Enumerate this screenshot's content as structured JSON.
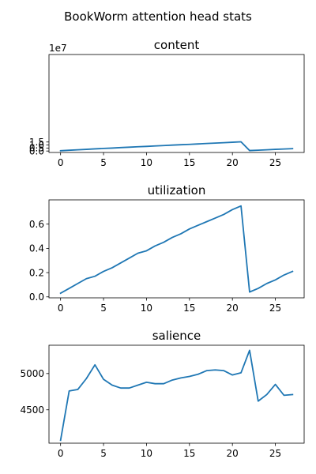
{
  "figure": {
    "title": "BookWorm attention head stats",
    "line_color": "#1f77b4"
  },
  "chart_data": [
    {
      "type": "line",
      "title": "content",
      "xlabel": "",
      "ylabel": "",
      "offset_text": "1e7",
      "xlim": [
        -1.35,
        28.35
      ],
      "ylim": [
        -0.24,
        16.05
      ],
      "x_ticks": [
        0,
        5,
        10,
        15,
        20,
        25
      ],
      "x_tick_labels": [
        "0",
        "5",
        "10",
        "15",
        "20",
        "25"
      ],
      "y_ticks": [
        0.0,
        0.5,
        1.0,
        1.5
      ],
      "y_tick_labels": [
        "0.0",
        "0.5",
        "1.0",
        "1.5"
      ],
      "y_scale": 10000000,
      "x": [
        0,
        1,
        2,
        3,
        4,
        5,
        6,
        7,
        8,
        9,
        10,
        11,
        12,
        13,
        14,
        15,
        16,
        17,
        18,
        19,
        20,
        21,
        22,
        23,
        24,
        25,
        26,
        27
      ],
      "series": [
        {
          "values": [
            0.05,
            0.13,
            0.2,
            0.28,
            0.36,
            0.43,
            0.49,
            0.57,
            0.64,
            0.71,
            0.77,
            0.84,
            0.91,
            0.98,
            1.05,
            1.11,
            1.18,
            1.25,
            1.32,
            1.39,
            1.46,
            1.53,
            0.08,
            0.14,
            0.2,
            0.28,
            0.34,
            0.4
          ]
        }
      ],
      "grid": false
    },
    {
      "type": "line",
      "title": "utilization",
      "xlabel": "",
      "ylabel": "",
      "xlim": [
        -1.35,
        28.35
      ],
      "ylim": [
        -0.008,
        0.8
      ],
      "x_ticks": [
        0,
        5,
        10,
        15,
        20,
        25
      ],
      "x_tick_labels": [
        "0",
        "5",
        "10",
        "15",
        "20",
        "25"
      ],
      "y_ticks": [
        0.0,
        0.2,
        0.4,
        0.6
      ],
      "y_tick_labels": [
        "0.0",
        "0.2",
        "0.4",
        "0.6"
      ],
      "y_scale": 1,
      "x": [
        0,
        1,
        2,
        3,
        4,
        5,
        6,
        7,
        8,
        9,
        10,
        11,
        12,
        13,
        14,
        15,
        16,
        17,
        18,
        19,
        20,
        21,
        22,
        23,
        24,
        25,
        26,
        27
      ],
      "series": [
        {
          "values": [
            0.03,
            0.07,
            0.11,
            0.15,
            0.17,
            0.21,
            0.24,
            0.28,
            0.32,
            0.36,
            0.38,
            0.42,
            0.45,
            0.49,
            0.52,
            0.56,
            0.59,
            0.62,
            0.65,
            0.68,
            0.72,
            0.75,
            0.04,
            0.07,
            0.11,
            0.14,
            0.18,
            0.21
          ]
        }
      ],
      "grid": false
    },
    {
      "type": "line",
      "title": "salience",
      "xlabel": "",
      "ylabel": "",
      "xlim": [
        -1.35,
        28.35
      ],
      "ylim": [
        4040,
        5390
      ],
      "x_ticks": [
        0,
        5,
        10,
        15,
        20,
        25
      ],
      "x_tick_labels": [
        "0",
        "5",
        "10",
        "15",
        "20",
        "25"
      ],
      "y_ticks": [
        4500,
        5000
      ],
      "y_tick_labels": [
        "4500",
        "5000"
      ],
      "y_scale": 1,
      "x": [
        0,
        1,
        2,
        3,
        4,
        5,
        6,
        7,
        8,
        9,
        10,
        11,
        12,
        13,
        14,
        15,
        16,
        17,
        18,
        19,
        20,
        21,
        22,
        23,
        24,
        25,
        26,
        27
      ],
      "series": [
        {
          "values": [
            4080,
            4760,
            4780,
            4930,
            5120,
            4920,
            4840,
            4800,
            4800,
            4840,
            4880,
            4860,
            4860,
            4910,
            4940,
            4960,
            4990,
            5040,
            5050,
            5040,
            4980,
            5010,
            5320,
            4620,
            4710,
            4850,
            4700,
            4710
          ]
        }
      ],
      "grid": false
    }
  ]
}
